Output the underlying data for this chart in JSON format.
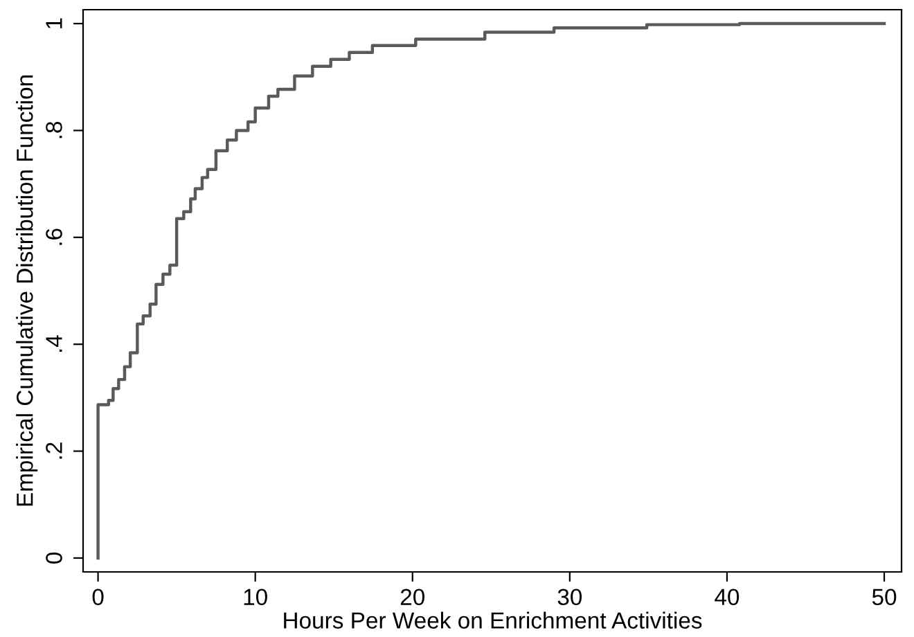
{
  "chart_data": {
    "type": "step",
    "xlabel": "Hours Per Week on Enrichment Activities",
    "ylabel": "Empirical Cumulative Distribution Function",
    "x": [
      0,
      0,
      0.67,
      0.96,
      1.31,
      1.69,
      2.05,
      2.5,
      2.87,
      3.31,
      3.69,
      4.13,
      4.57,
      5,
      5.45,
      5.89,
      6.18,
      6.62,
      6.97,
      7.5,
      8.22,
      8.8,
      9.54,
      10,
      10.85,
      11.44,
      12.5,
      13.64,
      14.8,
      15.98,
      17.45,
      20.2,
      24.6,
      29,
      34.9,
      40.8,
      50
    ],
    "series": [
      {
        "color": "#5a5a5a",
        "values": [
          0,
          0.287,
          0.295,
          0.317,
          0.334,
          0.358,
          0.384,
          0.438,
          0.453,
          0.475,
          0.512,
          0.531,
          0.548,
          0.635,
          0.648,
          0.672,
          0.691,
          0.712,
          0.727,
          0.762,
          0.782,
          0.8,
          0.816,
          0.842,
          0.864,
          0.877,
          0.902,
          0.92,
          0.933,
          0.946,
          0.959,
          0.971,
          0.984,
          0.992,
          0.998,
          1,
          1
        ]
      }
    ],
    "xlim": [
      -0.95,
      51.1
    ],
    "ylim": [
      -0.026,
      1.026
    ],
    "xticks": [
      0,
      10,
      20,
      30,
      40,
      50
    ],
    "yticks": [
      0,
      {
        "value": 0.2,
        "label": ".2"
      },
      {
        "value": 0.4,
        "label": ".4"
      },
      {
        "value": 0.6,
        "label": ".6"
      },
      {
        "value": 0.8,
        "label": ".8"
      },
      1
    ],
    "grid": false,
    "legend": false
  }
}
